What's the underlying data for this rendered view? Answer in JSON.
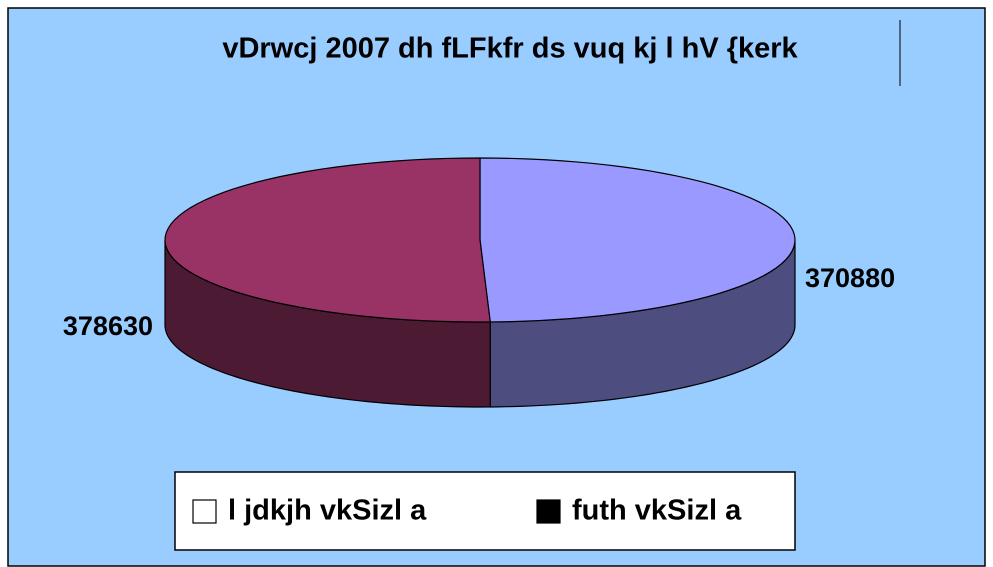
{
  "chart_data": {
    "type": "pie3d",
    "title": "vDrwcj 2007 dh fLFkfr ds vuq kj l hV {kerk",
    "categories": [
      "l jdkjh vkSizl a",
      "futh vkSizl a"
    ],
    "values": [
      370880,
      378630
    ],
    "colors": [
      "#9999ff",
      "#993366"
    ],
    "legend_marker_colors": [
      "#ffffff",
      "#000000"
    ]
  }
}
